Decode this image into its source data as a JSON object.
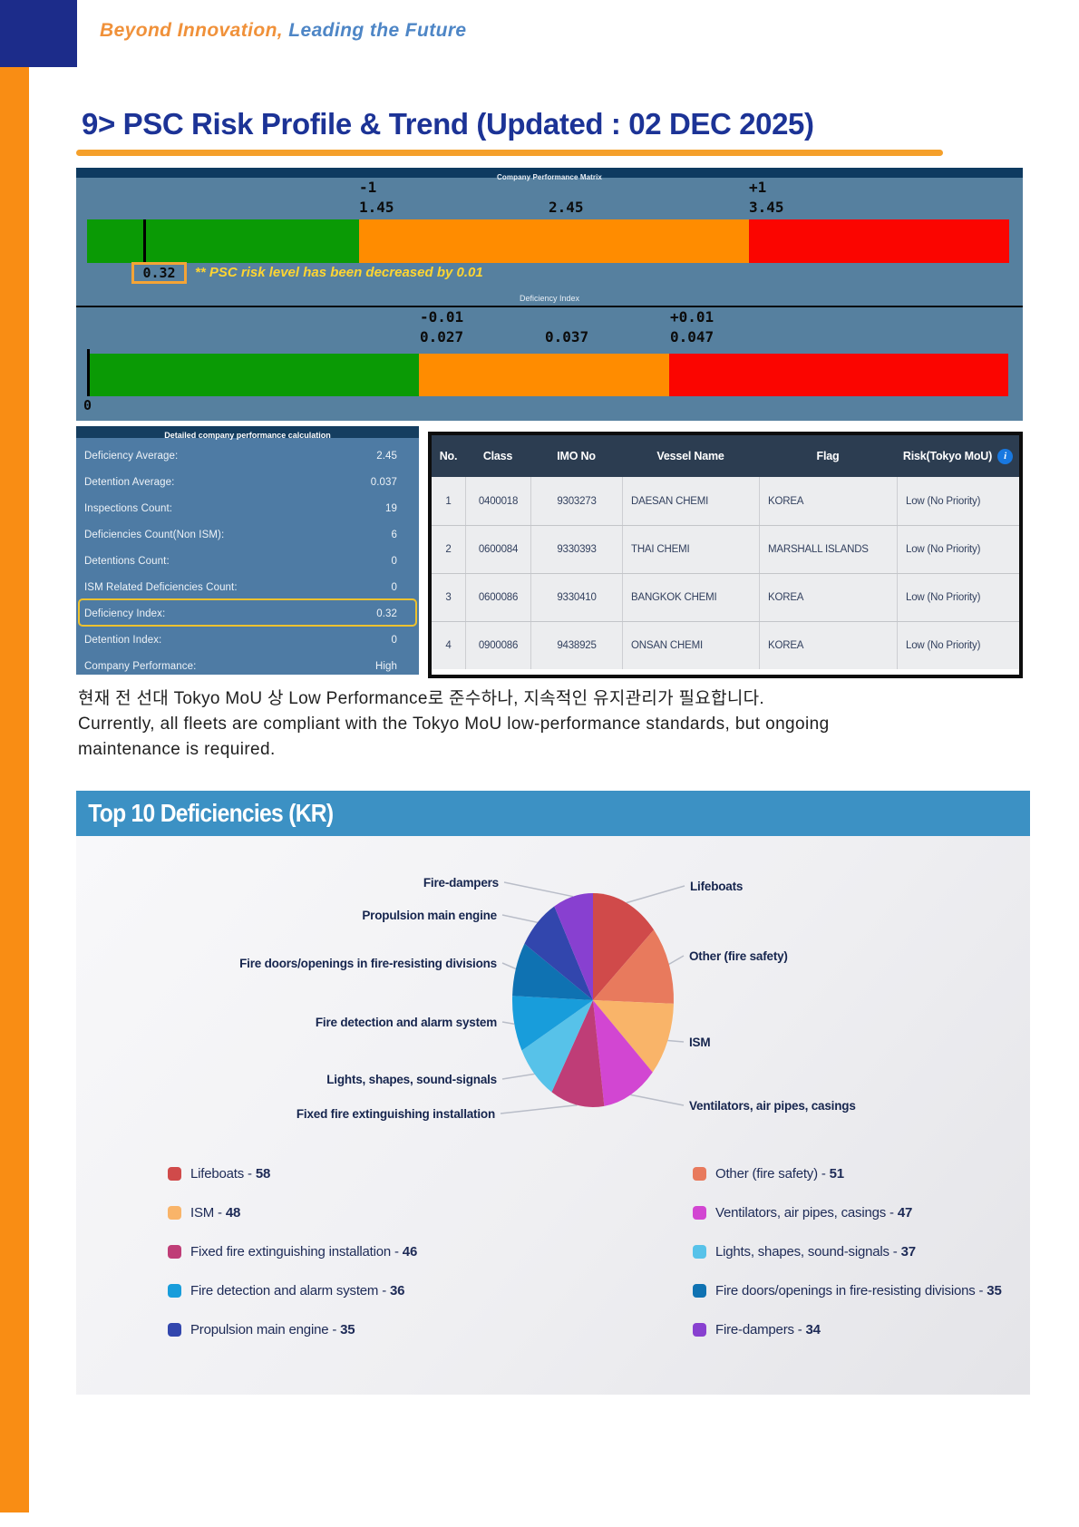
{
  "colors": {
    "navy_block": "#1c2c8a",
    "orange_stripe": "#f98d14",
    "tagline_orange": "#f0913a",
    "tagline_blue": "#4e86c6",
    "title_navy": "#1c3396",
    "underline_orange": "#f5a02b",
    "chart_bg": "#56809f",
    "chart_strip_navy": "#0e3a60",
    "gauge_green": "#0a9a05",
    "gauge_orange": "#ff8c00",
    "gauge_red": "#fb0500",
    "note_yellow": "#ffd531",
    "calc_bg": "#4e7ba4",
    "calc_head_navy": "#153e60",
    "table_head_navy": "#2c3d51",
    "top10_header_blue": "#3c91c4"
  },
  "header": {
    "tagline_orange": "Beyond Innovation,",
    "tagline_blue": " Leading the Future",
    "title": "9> PSC Risk Profile & Trend (Updated : 02 DEC 2025)"
  },
  "performance_matrix": {
    "title": "Company Performance Matrix",
    "note": "** PSC risk level has been decreased by 0.01",
    "score": "0.32",
    "gauge1": {
      "minus": "-1",
      "low": "1.45",
      "mid": "2.45",
      "plus": "+1",
      "high": "3.45"
    },
    "deficiency_index_label": "Deficiency Index",
    "gauge2": {
      "minus": "-0.01",
      "low": "0.027",
      "mid": "0.037",
      "plus": "+0.01",
      "high": "0.047",
      "marker": "0"
    }
  },
  "calculation_panel": {
    "title": "Detailed company performance calculation",
    "rows": [
      {
        "label": "Deficiency Average:",
        "value": "2.45",
        "highlight": false
      },
      {
        "label": "Detention Average:",
        "value": "0.037",
        "highlight": false
      },
      {
        "label": "Inspections Count:",
        "value": "19",
        "highlight": false
      },
      {
        "label": "Deficiencies Count(Non ISM):",
        "value": "6",
        "highlight": false
      },
      {
        "label": "Detentions Count:",
        "value": "0",
        "highlight": false
      },
      {
        "label": "ISM Related Deficiencies Count:",
        "value": "0",
        "highlight": false
      },
      {
        "label": "Deficiency Index:",
        "value": "0.32",
        "highlight": true
      },
      {
        "label": "Detention Index:",
        "value": "0",
        "highlight": false
      },
      {
        "label": "Company Performance:",
        "value": "High",
        "highlight": false
      }
    ]
  },
  "vessel_table": {
    "columns": [
      "No.",
      "Class",
      "IMO No",
      "Vessel Name",
      "Flag",
      "Risk(Tokyo MoU)"
    ],
    "info_icon": "i",
    "rows": [
      [
        "1",
        "0400018",
        "9303273",
        "DAESAN CHEMI",
        "KOREA",
        "Low (No Priority)"
      ],
      [
        "2",
        "0600084",
        "9330393",
        "THAI CHEMI",
        "MARSHALL ISLANDS",
        "Low (No Priority)"
      ],
      [
        "3",
        "0600086",
        "9330410",
        "BANGKOK CHEMI",
        "KOREA",
        "Low (No Priority)"
      ],
      [
        "4",
        "0900086",
        "9438925",
        "ONSAN CHEMI",
        "KOREA",
        "Low (No Priority)"
      ]
    ]
  },
  "summary": {
    "korean": "현재 전 선대 Tokyo MoU 상 Low Performance로 준수하나, 지속적인 유지관리가 필요합니다.",
    "english": "Currently, all fleets are compliant with the Tokyo MoU low-performance standards, but ongoing maintenance is required."
  },
  "chart_data": {
    "type": "pie",
    "title": "Top 10 Deficiencies (KR)",
    "categories": [
      "Lifeboats",
      "Other (fire safety)",
      "ISM",
      "Ventilators, air pipes, casings",
      "Fixed fire extinguishing installation",
      "Lights, shapes, sound-signals",
      "Fire detection and alarm system",
      "Fire doors/openings in fire-resisting divisions",
      "Propulsion main engine",
      "Fire-dampers"
    ],
    "values": [
      58,
      51,
      48,
      47,
      46,
      37,
      36,
      35,
      35,
      34
    ],
    "colors": [
      "#d04a4a",
      "#e87a5d",
      "#f9b469",
      "#d246d2",
      "#bf3d77",
      "#57c2e9",
      "#189ddb",
      "#0f72b2",
      "#3246ad",
      "#8840d0"
    ],
    "legend_position": "bottom",
    "legend_left_indices": [
      0,
      2,
      4,
      6,
      8
    ],
    "legend_right_indices": [
      1,
      3,
      5,
      7,
      9
    ],
    "start_angle_deg": 0,
    "direction": "clockwise"
  }
}
